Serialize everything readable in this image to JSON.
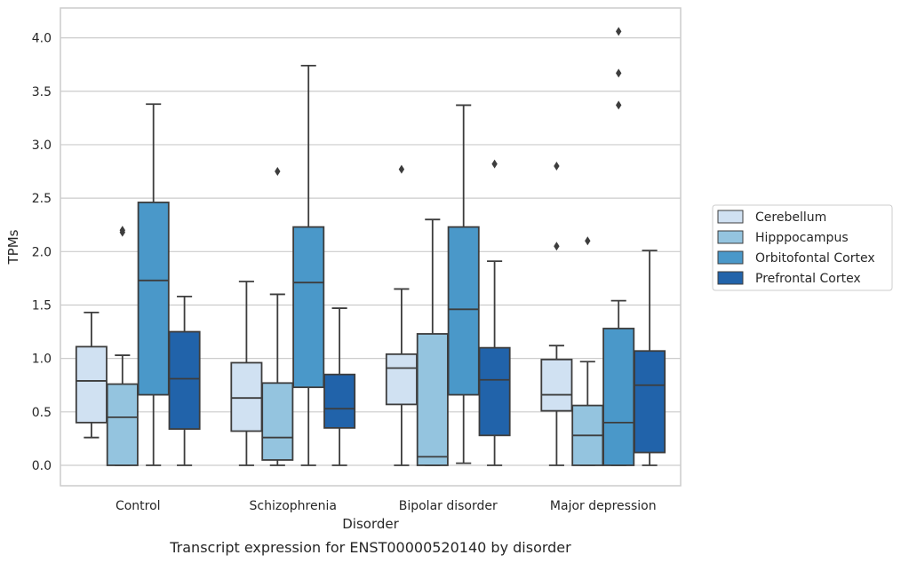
{
  "chart_data": {
    "type": "box",
    "xlabel": "Disorder",
    "ylabel": "TPMs",
    "caption": "Transcript expression for ENST00000520140 by disorder",
    "ylim": [
      -0.19,
      4.28
    ],
    "yticks": [
      "0.0",
      "0.5",
      "1.0",
      "1.5",
      "2.0",
      "2.5",
      "3.0",
      "3.5",
      "4.0"
    ],
    "grid": "horizontal",
    "legend_position": "right",
    "categories": [
      "Control",
      "Schizophrenia",
      "Bipolar disorder",
      "Major depression"
    ],
    "series": [
      {
        "name": "Cerebellum",
        "color": "#d0e1f2",
        "boxes": [
          {
            "whislo": 0.26,
            "q1": 0.4,
            "med": 0.79,
            "q3": 1.11,
            "whishi": 1.43,
            "fliers": []
          },
          {
            "whislo": 0.0,
            "q1": 0.32,
            "med": 0.63,
            "q3": 0.96,
            "whishi": 1.72,
            "fliers": []
          },
          {
            "whislo": 0.0,
            "q1": 0.57,
            "med": 0.91,
            "q3": 1.04,
            "whishi": 1.65,
            "fliers": [
              2.77
            ]
          },
          {
            "whislo": 0.0,
            "q1": 0.51,
            "med": 0.66,
            "q3": 0.99,
            "whishi": 1.12,
            "fliers": [
              2.8,
              2.05
            ]
          }
        ]
      },
      {
        "name": "Hipppocampus",
        "color": "#94c4df",
        "boxes": [
          {
            "whislo": 0.0,
            "q1": 0.0,
            "med": 0.45,
            "q3": 0.76,
            "whishi": 1.03,
            "fliers": [
              2.2,
              2.18
            ]
          },
          {
            "whislo": 0.0,
            "q1": 0.05,
            "med": 0.26,
            "q3": 0.77,
            "whishi": 1.6,
            "fliers": [
              2.75
            ]
          },
          {
            "whislo": 0.0,
            "q1": 0.0,
            "med": 0.08,
            "q3": 1.23,
            "whishi": 2.3,
            "fliers": []
          },
          {
            "whislo": 0.0,
            "q1": 0.0,
            "med": 0.28,
            "q3": 0.56,
            "whishi": 0.97,
            "fliers": [
              2.1
            ]
          }
        ]
      },
      {
        "name": "Orbitofontal Cortex",
        "color": "#4a98c9",
        "boxes": [
          {
            "whislo": 0.0,
            "q1": 0.66,
            "med": 1.73,
            "q3": 2.46,
            "whishi": 3.38,
            "fliers": []
          },
          {
            "whislo": 0.0,
            "q1": 0.73,
            "med": 1.71,
            "q3": 2.23,
            "whishi": 3.74,
            "fliers": []
          },
          {
            "whislo": 0.02,
            "q1": 0.66,
            "med": 1.46,
            "q3": 2.23,
            "whishi": 3.37,
            "fliers": []
          },
          {
            "whislo": 0.0,
            "q1": 0.0,
            "med": 0.4,
            "q3": 1.28,
            "whishi": 1.54,
            "fliers": [
              4.06,
              3.67,
              3.37
            ]
          }
        ]
      },
      {
        "name": "Prefrontal Cortex",
        "color": "#2163aa",
        "boxes": [
          {
            "whislo": 0.0,
            "q1": 0.34,
            "med": 0.81,
            "q3": 1.25,
            "whishi": 1.58,
            "fliers": []
          },
          {
            "whislo": 0.0,
            "q1": 0.35,
            "med": 0.53,
            "q3": 0.85,
            "whishi": 1.47,
            "fliers": []
          },
          {
            "whislo": 0.0,
            "q1": 0.28,
            "med": 0.8,
            "q3": 1.1,
            "whishi": 1.91,
            "fliers": [
              2.82
            ]
          },
          {
            "whislo": 0.0,
            "q1": 0.12,
            "med": 0.75,
            "q3": 1.07,
            "whishi": 2.01,
            "fliers": []
          }
        ]
      }
    ]
  }
}
